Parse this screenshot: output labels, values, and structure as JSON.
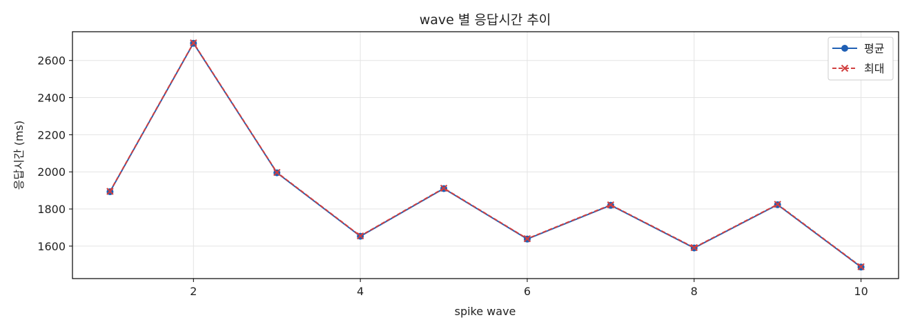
{
  "chart_data": {
    "type": "line",
    "title": "wave 별 응답시간 추이",
    "xlabel": "spike wave",
    "ylabel": "응답시간 (ms)",
    "x": [
      1,
      2,
      3,
      4,
      5,
      6,
      7,
      8,
      9,
      10
    ],
    "xlim": [
      0.55,
      10.45
    ],
    "ylim": [
      1425,
      2755
    ],
    "xticks": [
      2,
      4,
      6,
      8,
      10
    ],
    "yticks": [
      1600,
      1800,
      2000,
      2200,
      2400,
      2600
    ],
    "grid": true,
    "legend_position": "top-right",
    "series": [
      {
        "name": "평균",
        "values": [
          1893,
          2693,
          1995,
          1653,
          1910,
          1638,
          1820,
          1590,
          1823,
          1487
        ],
        "color": "#1f5fb4",
        "marker": "circle",
        "linestyle": "solid"
      },
      {
        "name": "최대",
        "values": [
          1895,
          2695,
          1997,
          1655,
          1912,
          1640,
          1822,
          1592,
          1825,
          1489
        ],
        "color": "#d13f3f",
        "marker": "x",
        "linestyle": "dashed"
      }
    ]
  }
}
